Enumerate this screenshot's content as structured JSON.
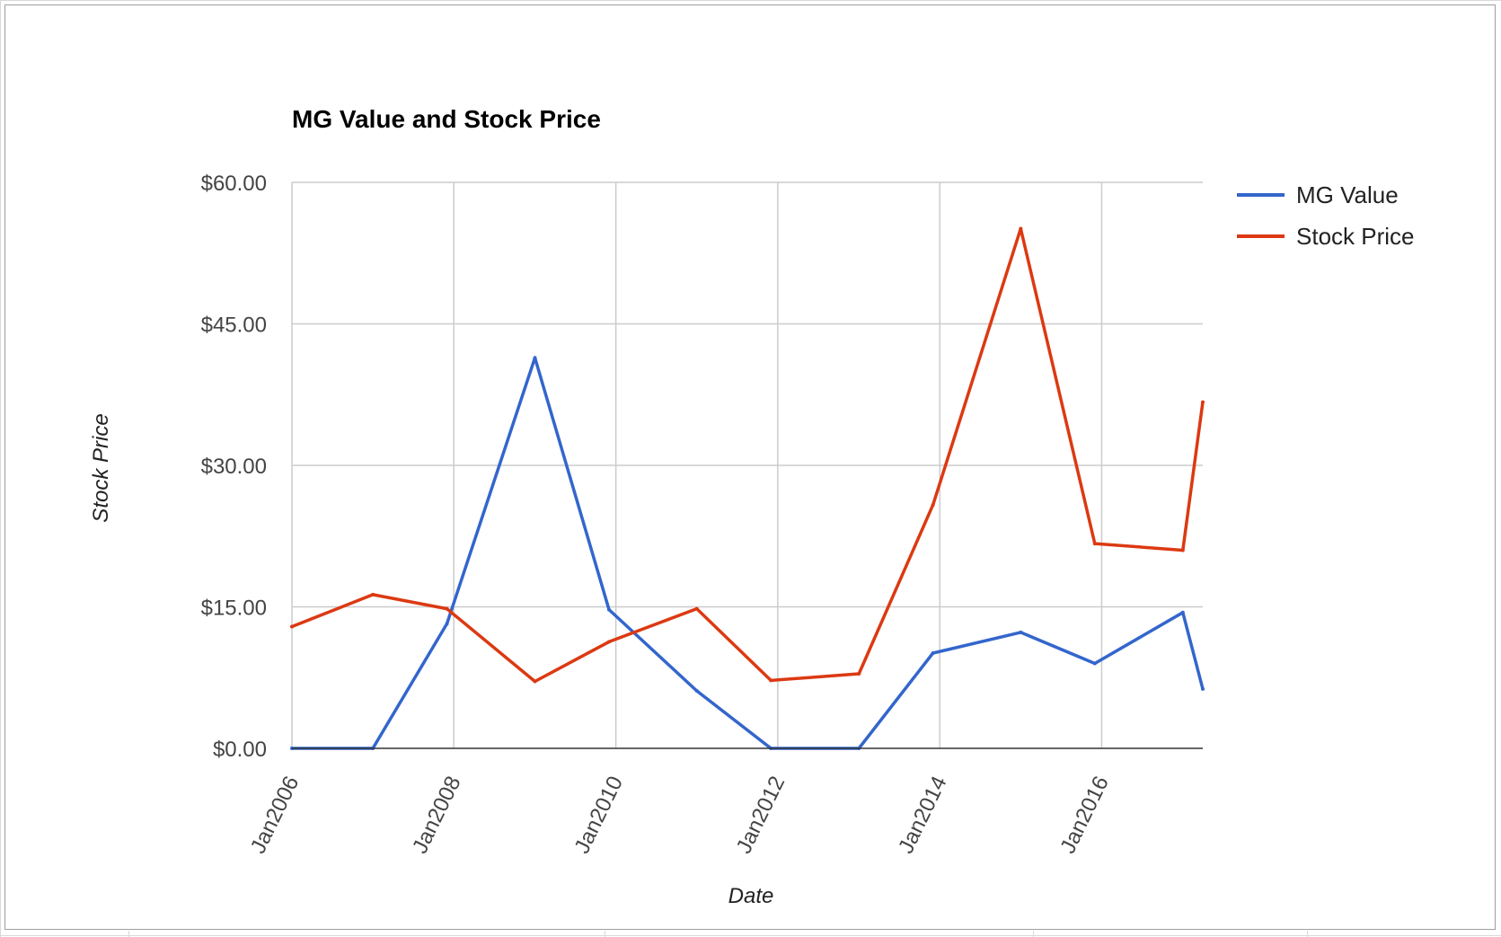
{
  "chart_data": {
    "type": "line",
    "title": "MG Value and Stock Price",
    "xlabel": "Date",
    "ylabel": "Stock Price",
    "x_tick_labels": [
      "Jan2006",
      "Jan2008",
      "Jan2010",
      "Jan2012",
      "Jan2014",
      "Jan2016"
    ],
    "y_tick_labels": [
      "$0.00",
      "$15.00",
      "$30.00",
      "$45.00",
      "$60.00"
    ],
    "y_ticks": [
      0,
      15,
      30,
      45,
      60
    ],
    "ylim": [
      0,
      60
    ],
    "xlim": [
      "2006-01-01",
      "2017-04-01"
    ],
    "legend_position": "right",
    "grid": true,
    "x": [
      "2006-01-01",
      "2007-01-01",
      "2007-12-01",
      "2009-01-01",
      "2009-12-01",
      "2011-01-01",
      "2011-12-01",
      "2013-01-01",
      "2013-12-01",
      "2015-01-01",
      "2015-12-01",
      "2017-01-01",
      "2017-04-01"
    ],
    "series": [
      {
        "name": "MG Value",
        "color": "#3366cc",
        "values": [
          0,
          0,
          13.2,
          41.4,
          14.7,
          6.1,
          0,
          0,
          10.1,
          12.3,
          9.0,
          14.4,
          6.3
        ]
      },
      {
        "name": "Stock Price",
        "color": "#dc3912",
        "values": [
          12.9,
          16.3,
          14.8,
          7.1,
          11.3,
          14.8,
          7.2,
          7.9,
          25.8,
          55.1,
          21.7,
          21.0,
          36.7
        ]
      }
    ]
  }
}
